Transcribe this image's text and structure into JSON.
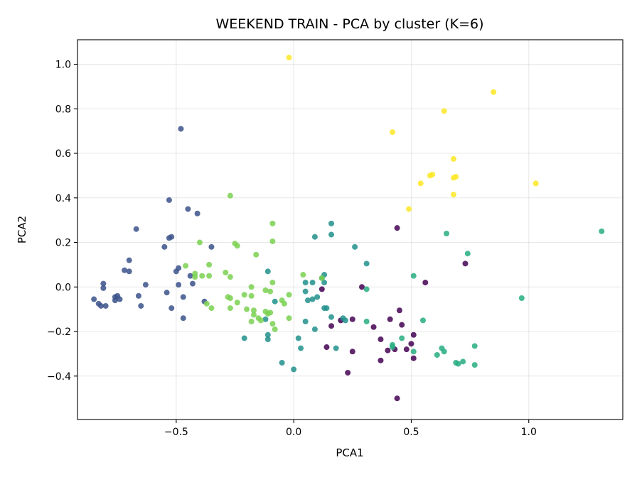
{
  "chart_data": {
    "type": "scatter",
    "title": "WEEKEND TRAIN - PCA by cluster (K=6)",
    "xlabel": "PCA1",
    "ylabel": "PCA2",
    "xlim": [
      -0.92,
      1.4
    ],
    "ylim": [
      -0.595,
      1.11
    ],
    "xticks": [
      -0.5,
      0.0,
      0.5,
      1.0
    ],
    "xtick_labels": [
      "−0.5",
      "0.0",
      "0.5",
      "1.0"
    ],
    "yticks": [
      -0.4,
      -0.2,
      0.0,
      0.2,
      0.4,
      0.6,
      0.8,
      1.0
    ],
    "ytick_labels": [
      "−0.4",
      "−0.2",
      "0.0",
      "0.2",
      "0.4",
      "0.6",
      "0.8",
      "1.0"
    ],
    "grid": true,
    "colormap": "viridis",
    "series": [
      {
        "color": "#440154",
        "points": [
          [
            0.44,
            0.265
          ],
          [
            0.56,
            0.02
          ],
          [
            0.73,
            0.105
          ],
          [
            0.12,
            -0.01
          ],
          [
            0.2,
            -0.15
          ],
          [
            0.25,
            -0.145
          ],
          [
            0.29,
            0.0
          ],
          [
            0.34,
            -0.18
          ],
          [
            0.37,
            -0.235
          ],
          [
            0.41,
            -0.145
          ],
          [
            0.45,
            -0.105
          ],
          [
            0.46,
            -0.17
          ],
          [
            0.48,
            -0.28
          ],
          [
            0.51,
            -0.215
          ],
          [
            0.51,
            -0.32
          ],
          [
            0.5,
            -0.255
          ],
          [
            0.43,
            -0.28
          ],
          [
            0.4,
            -0.285
          ],
          [
            0.37,
            -0.33
          ],
          [
            0.25,
            -0.29
          ],
          [
            0.14,
            -0.27
          ],
          [
            0.23,
            -0.385
          ],
          [
            0.44,
            -0.5
          ],
          [
            0.16,
            -0.175
          ]
        ]
      },
      {
        "color": "#3b528b",
        "points": [
          [
            -0.48,
            0.71
          ],
          [
            -0.53,
            0.39
          ],
          [
            -0.45,
            0.35
          ],
          [
            -0.41,
            0.33
          ],
          [
            -0.67,
            0.26
          ],
          [
            -0.53,
            0.22
          ],
          [
            -0.52,
            0.225
          ],
          [
            -0.55,
            0.18
          ],
          [
            -0.35,
            0.18
          ],
          [
            -0.7,
            0.12
          ],
          [
            -0.49,
            0.085
          ],
          [
            -0.5,
            0.07
          ],
          [
            -0.72,
            0.075
          ],
          [
            -0.7,
            0.07
          ],
          [
            -0.81,
            0.015
          ],
          [
            -0.81,
            -0.005
          ],
          [
            -0.63,
            0.01
          ],
          [
            -0.43,
            0.015
          ],
          [
            -0.54,
            -0.025
          ],
          [
            -0.49,
            0.01
          ],
          [
            -0.44,
            0.05
          ],
          [
            -0.85,
            -0.055
          ],
          [
            -0.83,
            -0.075
          ],
          [
            -0.82,
            -0.085
          ],
          [
            -0.76,
            -0.045
          ],
          [
            -0.75,
            -0.04
          ],
          [
            -0.74,
            -0.055
          ],
          [
            -0.76,
            -0.06
          ],
          [
            -0.65,
            -0.085
          ],
          [
            -0.66,
            -0.04
          ],
          [
            -0.52,
            -0.095
          ],
          [
            -0.47,
            -0.045
          ],
          [
            -0.47,
            -0.14
          ],
          [
            -0.38,
            -0.065
          ],
          [
            -0.8,
            -0.085
          ]
        ]
      },
      {
        "color": "#21918c",
        "points": [
          [
            0.16,
            0.285
          ],
          [
            0.16,
            0.235
          ],
          [
            0.09,
            0.225
          ],
          [
            0.26,
            0.18
          ],
          [
            0.31,
            0.105
          ],
          [
            0.12,
            0.04
          ],
          [
            0.13,
            0.055
          ],
          [
            0.05,
            0.02
          ],
          [
            0.08,
            0.02
          ],
          [
            0.13,
            0.02
          ],
          [
            0.05,
            -0.02
          ],
          [
            0.06,
            -0.06
          ],
          [
            0.08,
            -0.055
          ],
          [
            0.1,
            -0.045
          ],
          [
            0.14,
            -0.095
          ],
          [
            0.13,
            -0.095
          ],
          [
            -0.11,
            0.07
          ],
          [
            -0.08,
            -0.065
          ],
          [
            -0.12,
            -0.145
          ],
          [
            -0.11,
            -0.235
          ],
          [
            -0.11,
            -0.215
          ],
          [
            -0.21,
            -0.23
          ],
          [
            0.02,
            -0.23
          ],
          [
            0.05,
            -0.155
          ],
          [
            0.09,
            -0.19
          ],
          [
            0.16,
            -0.135
          ],
          [
            0.21,
            -0.14
          ],
          [
            0.22,
            -0.15
          ],
          [
            0.18,
            -0.275
          ],
          [
            0.03,
            -0.275
          ],
          [
            0.0,
            -0.37
          ],
          [
            -0.05,
            -0.34
          ]
        ]
      },
      {
        "color": "#27ad81",
        "points": [
          [
            1.31,
            0.25
          ],
          [
            0.65,
            0.24
          ],
          [
            0.74,
            0.15
          ],
          [
            0.51,
            0.05
          ],
          [
            0.31,
            -0.01
          ],
          [
            0.97,
            -0.05
          ],
          [
            0.55,
            -0.15
          ],
          [
            0.46,
            -0.23
          ],
          [
            0.51,
            -0.29
          ],
          [
            0.63,
            -0.275
          ],
          [
            0.64,
            -0.29
          ],
          [
            0.61,
            -0.305
          ],
          [
            0.77,
            -0.265
          ],
          [
            0.69,
            -0.34
          ],
          [
            0.7,
            -0.345
          ],
          [
            0.72,
            -0.335
          ],
          [
            0.77,
            -0.35
          ],
          [
            0.31,
            -0.155
          ],
          [
            0.42,
            -0.26
          ],
          [
            0.42,
            -0.27
          ]
        ]
      },
      {
        "color": "#7ad151",
        "points": [
          [
            -0.27,
            0.41
          ],
          [
            -0.09,
            0.285
          ],
          [
            -0.4,
            0.2
          ],
          [
            -0.09,
            0.205
          ],
          [
            -0.25,
            0.195
          ],
          [
            -0.24,
            0.185
          ],
          [
            -0.36,
            0.1
          ],
          [
            -0.16,
            0.145
          ],
          [
            -0.46,
            0.095
          ],
          [
            -0.42,
            0.06
          ],
          [
            -0.39,
            0.05
          ],
          [
            -0.36,
            0.05
          ],
          [
            -0.42,
            0.045
          ],
          [
            -0.29,
            0.065
          ],
          [
            -0.27,
            0.045
          ],
          [
            -0.18,
            0.0
          ],
          [
            -0.21,
            -0.035
          ],
          [
            -0.27,
            -0.05
          ],
          [
            -0.28,
            -0.045
          ],
          [
            -0.18,
            -0.04
          ],
          [
            -0.12,
            -0.015
          ],
          [
            -0.1,
            -0.02
          ],
          [
            -0.09,
            0.02
          ],
          [
            -0.02,
            -0.035
          ],
          [
            0.04,
            0.055
          ],
          [
            0.12,
            0.04
          ],
          [
            -0.05,
            -0.06
          ],
          [
            -0.04,
            -0.075
          ],
          [
            -0.37,
            -0.075
          ],
          [
            -0.35,
            -0.095
          ],
          [
            -0.27,
            -0.095
          ],
          [
            -0.24,
            -0.07
          ],
          [
            -0.2,
            -0.1
          ],
          [
            -0.17,
            -0.125
          ],
          [
            -0.17,
            -0.105
          ],
          [
            -0.15,
            -0.14
          ],
          [
            -0.14,
            -0.15
          ],
          [
            -0.12,
            -0.11
          ],
          [
            -0.11,
            -0.12
          ],
          [
            -0.1,
            -0.115
          ],
          [
            -0.09,
            -0.165
          ],
          [
            -0.08,
            -0.19
          ],
          [
            -0.02,
            -0.14
          ],
          [
            -0.18,
            -0.155
          ]
        ]
      },
      {
        "color": "#fde725",
        "points": [
          [
            -0.02,
            1.03
          ],
          [
            0.85,
            0.875
          ],
          [
            0.64,
            0.79
          ],
          [
            0.42,
            0.695
          ],
          [
            0.68,
            0.575
          ],
          [
            0.58,
            0.5
          ],
          [
            0.59,
            0.505
          ],
          [
            0.68,
            0.49
          ],
          [
            0.69,
            0.495
          ],
          [
            0.54,
            0.465
          ],
          [
            1.03,
            0.465
          ],
          [
            0.68,
            0.415
          ],
          [
            0.49,
            0.35
          ]
        ]
      }
    ]
  }
}
